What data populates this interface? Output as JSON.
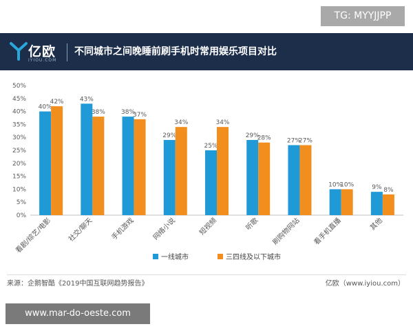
{
  "watermark_top": "TG: MYYJJPP",
  "watermark_bottom": "www.mar-do-oeste.com",
  "brand": {
    "logo_text": "亿欧",
    "logo_sub": "IYIOU.COM",
    "accent": "#2aa6d8",
    "header_bg": "#1d2e4b"
  },
  "footer": {
    "source": "来源：企鹅智酷《2019中国互联网趋势报告》",
    "brand_text": "亿欧（www.iyiou.com）"
  },
  "chart_data": {
    "type": "bar",
    "title": "不同城市之间晚睡前刷手机时常用娱乐项目对比",
    "categories": [
      "看剧/综艺/电影",
      "社交/聊天",
      "手机游戏",
      "网络小说",
      "短视频",
      "听歌",
      "刷购物网站",
      "看手机直播",
      "其他"
    ],
    "series": [
      {
        "name": "一线城市",
        "values": [
          40,
          43,
          38,
          29,
          25,
          29,
          27,
          10,
          9
        ],
        "color": "#1f9ad6",
        "labels": [
          "40%",
          "43%",
          "38%",
          "29%",
          "25%",
          "29%",
          "27%",
          "10%",
          "9%"
        ]
      },
      {
        "name": "三四线及以下城市",
        "values": [
          42,
          38,
          37,
          34,
          34,
          28,
          27,
          10,
          8
        ],
        "color": "#f28e1e",
        "labels": [
          "42%",
          "38%",
          "37%",
          "34%",
          "34%",
          "28%",
          "27%",
          "10%",
          "8%"
        ]
      }
    ],
    "ylim": [
      0,
      50
    ],
    "yticks": [
      "0%",
      "5%",
      "10%",
      "15%",
      "20%",
      "25%",
      "30%",
      "35%",
      "40%",
      "45%",
      "50%"
    ],
    "xlabel": "",
    "ylabel": "",
    "grid": false,
    "legend": "bottom-center"
  }
}
